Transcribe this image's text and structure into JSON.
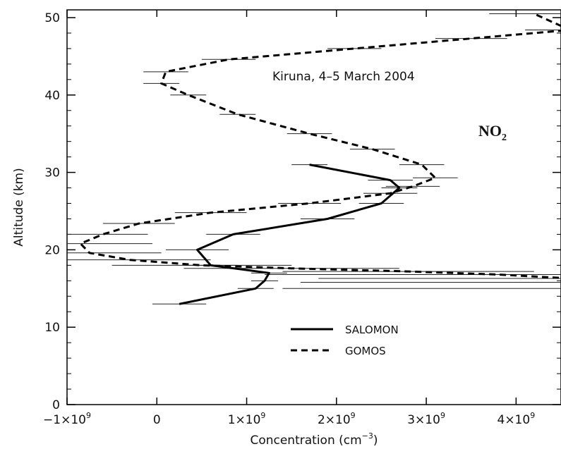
{
  "chart_data": {
    "type": "line",
    "title": "",
    "xlabel": "Concentration (cm",
    "xlabel_superscript": "−3",
    "xlabel_close": ")",
    "ylabel": "Altitude (km)",
    "xlim": [
      -1000000000.0,
      4500000000.0
    ],
    "ylim": [
      0,
      51
    ],
    "xticks": [
      {
        "value": -1000000000.0,
        "mant": "−1×10",
        "exp": "9"
      },
      {
        "value": 0,
        "mant": "0",
        "exp": ""
      },
      {
        "value": 1000000000.0,
        "mant": "1×10",
        "exp": "9"
      },
      {
        "value": 2000000000.0,
        "mant": "2×10",
        "exp": "9"
      },
      {
        "value": 3000000000.0,
        "mant": "3×10",
        "exp": "9"
      },
      {
        "value": 4000000000.0,
        "mant": "4×10",
        "exp": "9"
      }
    ],
    "yticks": [
      {
        "value": 0,
        "label": "0"
      },
      {
        "value": 10,
        "label": "10"
      },
      {
        "value": 20,
        "label": "20"
      },
      {
        "value": 30,
        "label": "30"
      },
      {
        "value": 40,
        "label": "40"
      },
      {
        "value": 50,
        "label": "50"
      }
    ],
    "annotation": "Kiruna, 4–5 March 2004",
    "species_label": {
      "main": "NO",
      "sub": "2"
    },
    "legend": {
      "position": "bottom-right",
      "entries": [
        "SALOMON",
        "GOMOS"
      ]
    },
    "grid": false,
    "series": [
      {
        "name": "SALOMON",
        "style": "solid",
        "x": [
          250000000.0,
          1100000000.0,
          1200000000.0,
          1250000000.0,
          600000000.0,
          450000000.0,
          850000000.0,
          1900000000.0,
          2500000000.0,
          2700000000.0,
          2600000000.0,
          1700000000.0
        ],
        "y": [
          13,
          15,
          16,
          17,
          18,
          20,
          22,
          24,
          26,
          28,
          29,
          31
        ],
        "err": [
          300000000.0,
          200000000.0,
          150000000.0,
          200000000.0,
          300000000.0,
          350000000.0,
          300000000.0,
          300000000.0,
          250000000.0,
          200000000.0,
          250000000.0,
          200000000.0
        ]
      },
      {
        "name": "GOMOS",
        "style": "dashed",
        "x": [
          4600000000.0,
          4600000000.0,
          4600000000.0,
          3800000000.0,
          2800000000.0,
          1500000000.0,
          500000000.0,
          -300000000.0,
          -750000000.0,
          -850000000.0,
          -600000000.0,
          -200000000.0,
          600000000.0,
          1700000000.0,
          2600000000.0,
          2850000000.0,
          3100000000.0,
          2950000000.0,
          2400000000.0,
          1700000000.0,
          900000000.0,
          350000000.0,
          50000000.0,
          100000000.0,
          800000000.0,
          2200000000.0,
          3500000000.0,
          4600000000.0,
          4200000000.0
        ],
        "y": [
          15,
          15.8,
          16.3,
          16.8,
          17.2,
          17.6,
          18,
          18.7,
          19.6,
          20.8,
          22,
          23.4,
          24.8,
          26,
          27.3,
          28.2,
          29.3,
          31,
          33,
          35,
          37.5,
          40,
          41.5,
          43,
          44.6,
          46,
          47.3,
          48.4,
          50.5
        ],
        "err": [
          3200000000.0,
          3000000000.0,
          2800000000.0,
          2600000000.0,
          1400000000.0,
          1200000000.0,
          1000000000.0,
          900000000.0,
          800000000.0,
          800000000.0,
          500000000.0,
          400000000.0,
          400000000.0,
          350000000.0,
          300000000.0,
          300000000.0,
          250000000.0,
          250000000.0,
          250000000.0,
          250000000.0,
          200000000.0,
          200000000.0,
          200000000.0,
          250000000.0,
          300000000.0,
          300000000.0,
          400000000.0,
          500000000.0,
          500000000.0
        ]
      }
    ]
  }
}
